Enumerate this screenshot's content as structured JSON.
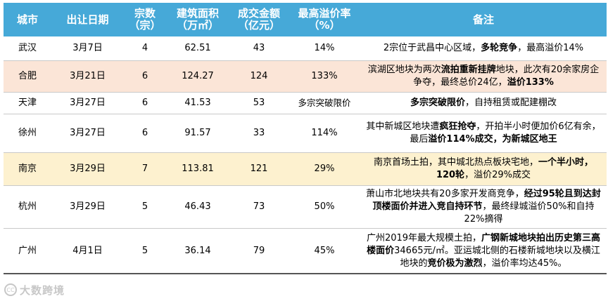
{
  "headers": {
    "city": "城市",
    "date": "出让日期",
    "count_l1": "宗数",
    "count_l2": "（宗）",
    "area_l1": "建筑面积",
    "area_l2": "（万㎡）",
    "amount_l1": "成交金额",
    "amount_l2": "（亿元）",
    "premium_l1": "最高溢价率",
    "premium_l2": "（%）",
    "notes": "备注"
  },
  "rows": [
    {
      "city": "武汉",
      "date": "3月7日",
      "count": "4",
      "area": "62.51",
      "amount": "43",
      "premium": "14%",
      "note": [
        {
          "text": "2宗位于武昌中心区域，",
          "bold": false
        },
        {
          "text": "多轮竞争",
          "bold": true
        },
        {
          "text": "，最高溢价14%",
          "bold": false
        }
      ]
    },
    {
      "city": "合肥",
      "date": "3月21日",
      "count": "6",
      "area": "124.27",
      "amount": "124",
      "premium": "133%",
      "note": [
        {
          "text": "滨湖区地块为两次",
          "bold": false
        },
        {
          "text": "流拍重新挂牌",
          "bold": true
        },
        {
          "text": "地块，此次有20余家房企争夺，最终总价24亿，",
          "bold": false
        },
        {
          "text": "溢价133%",
          "bold": true
        }
      ]
    },
    {
      "city": "天津",
      "date": "3月27日",
      "count": "6",
      "area": "41.53",
      "amount": "53",
      "premium": "多宗突破限价",
      "note": [
        {
          "text": "多宗突破限价",
          "bold": true
        },
        {
          "text": "，自持租赁或配建棚改",
          "bold": false
        }
      ]
    },
    {
      "city": "徐州",
      "date": "3月27日",
      "count": "6",
      "area": "91.57",
      "amount": "33",
      "premium": "114%",
      "note": [
        {
          "text": "其中新城区地块遭",
          "bold": false
        },
        {
          "text": "疯狂抢夺",
          "bold": true
        },
        {
          "text": "，开拍半小时便加价6亿有余，最后",
          "bold": false
        },
        {
          "text": "溢价114%成交，为新城区地王",
          "bold": true
        }
      ]
    },
    {
      "city": "南京",
      "date": "3月29日",
      "count": "7",
      "area": "113.81",
      "amount": "121",
      "premium": "29%",
      "note": [
        {
          "text": "南京首场土拍，其中城北热点板块宅地，",
          "bold": false
        },
        {
          "text": "一个半小时，120轮",
          "bold": true
        },
        {
          "text": "，溢价29%成交",
          "bold": false
        }
      ]
    },
    {
      "city": "杭州",
      "date": "3月29日",
      "count": "5",
      "area": "46.43",
      "amount": "73",
      "premium": "50%",
      "note": [
        {
          "text": "萧山市北地块共有20多家开发商竞争，",
          "bold": false
        },
        {
          "text": "经过95轮且到达封顶楼面价并进入竞自持环节",
          "bold": true
        },
        {
          "text": "，最终绿城溢价50%和自持22%摘得",
          "bold": false
        }
      ]
    },
    {
      "city": "广州",
      "date": "4月1日",
      "count": "5",
      "area": "36.14",
      "amount": "79",
      "premium": "45%",
      "note": [
        {
          "text": "广州2019年最大规模土拍，",
          "bold": false
        },
        {
          "text": "广钢新城地块拍出历史第三高楼面价",
          "bold": true
        },
        {
          "text": "34665元/㎡。亚运城北侧的石楼新城地块以及横江地块的",
          "bold": false
        },
        {
          "text": "竞价极为激烈",
          "bold": true
        },
        {
          "text": "，溢价率均达45%。",
          "bold": false
        }
      ]
    }
  ],
  "watermark": {
    "logo_mark": "CC",
    "text": "大数跨境"
  }
}
